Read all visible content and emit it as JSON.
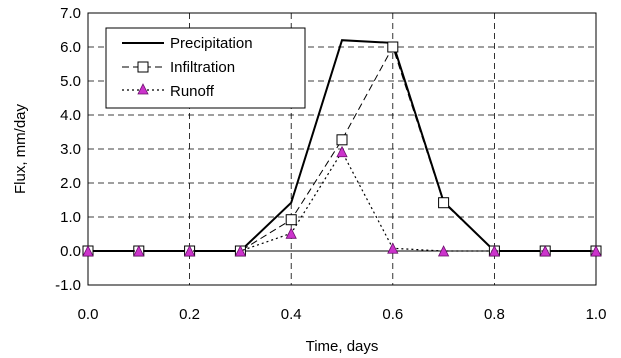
{
  "chart_data": {
    "type": "line",
    "xlabel": "Time, days",
    "ylabel": "Flux, mm/day",
    "xlim": [
      0.0,
      1.0
    ],
    "ylim": [
      -1.0,
      7.0
    ],
    "x_ticks": [
      "0.0",
      "0.2",
      "0.4",
      "0.6",
      "0.8",
      "1.0"
    ],
    "y_ticks": [
      "7.0",
      "6.0",
      "5.0",
      "4.0",
      "3.0",
      "2.0",
      "1.0",
      "0.0",
      "-1.0"
    ],
    "grid": "dashed",
    "legend_position": "top-left",
    "series": [
      {
        "name": "Precipitation",
        "style": "solid",
        "marker": "none",
        "color": "#000000",
        "x": [
          0.0,
          0.1,
          0.2,
          0.3,
          0.4,
          0.5,
          0.6,
          0.7,
          0.8,
          0.9,
          1.0
        ],
        "y": [
          0.0,
          0.0,
          0.0,
          0.0,
          1.42,
          6.2,
          6.12,
          1.45,
          0.0,
          0.0,
          0.0
        ]
      },
      {
        "name": "Infiltration",
        "style": "dashed",
        "marker": "square",
        "color": "#000000",
        "x": [
          0.0,
          0.1,
          0.2,
          0.3,
          0.4,
          0.5,
          0.6,
          0.7,
          0.8,
          0.9,
          1.0
        ],
        "y": [
          0.0,
          0.0,
          0.0,
          0.0,
          0.92,
          3.27,
          6.0,
          1.42,
          0.0,
          0.0,
          0.0
        ]
      },
      {
        "name": "Runoff",
        "style": "dotted",
        "marker": "triangle",
        "color": "#000000",
        "marker_color": "#cc33cc",
        "x": [
          0.0,
          0.1,
          0.2,
          0.3,
          0.4,
          0.5,
          0.6,
          0.7,
          0.8,
          0.9,
          1.0
        ],
        "y": [
          0.0,
          0.0,
          0.0,
          0.0,
          0.52,
          2.92,
          0.08,
          0.0,
          0.0,
          0.0,
          0.0
        ]
      }
    ]
  }
}
